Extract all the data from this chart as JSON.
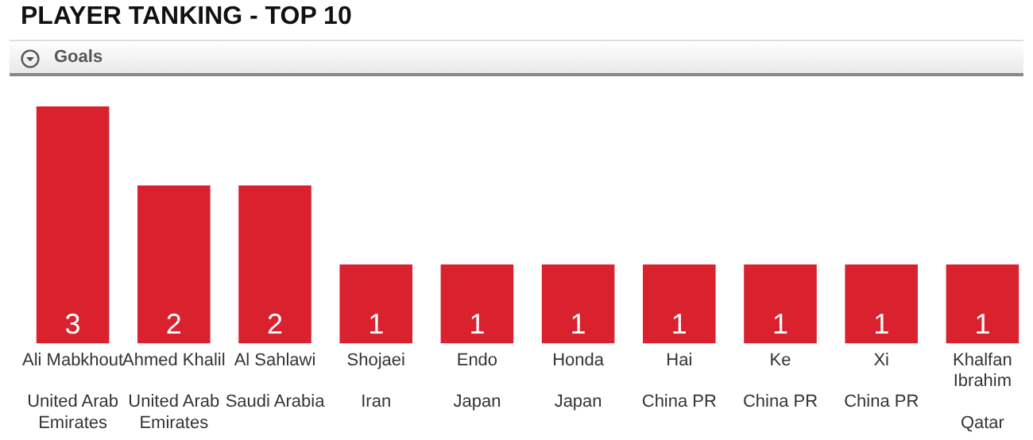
{
  "chart_data": {
    "type": "bar",
    "title": "PLAYER TANKING - TOP 10",
    "subtitle": "Goals",
    "categories": [
      "Ali Mabkhout\nUnited Arab Emirates",
      "Ahmed Khalil\nUnited Arab Emirates",
      "Al Sahlawi\nSaudi Arabia",
      "Shojaei\nIran",
      "Endo\nJapan",
      "Honda\nJapan",
      "Hai\nChina PR",
      "Ke\nChina PR",
      "Xi\nChina PR",
      "Khalfan Ibrahim\nQatar"
    ],
    "values": [
      3,
      2,
      2,
      1,
      1,
      1,
      1,
      1,
      1,
      1
    ],
    "color": "#d9222e",
    "data_labels": true
  }
}
